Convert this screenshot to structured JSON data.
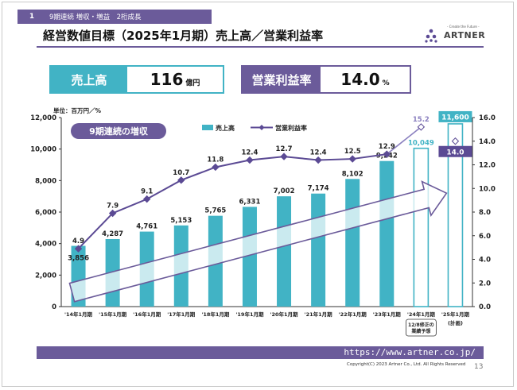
{
  "header": {
    "section_number": "1",
    "section_text": "9期連続 増収・増益　2桁成長",
    "title": "経営数値目標（2025年1月期）売上高／営業利益率",
    "logo_tagline": "- Create the Future -",
    "logo_text": "ARTNER"
  },
  "kpis": {
    "sales_label": "売上高",
    "sales_value": "116",
    "sales_unit": "億円",
    "margin_label": "営業利益率",
    "margin_value": "14.0",
    "margin_unit": "%"
  },
  "chart_data": {
    "type": "bar",
    "unit_label": "単位：百万円／%",
    "badge": "9期連続の増収",
    "categories": [
      "'14年1月期",
      "'15年1月期",
      "'16年1月期",
      "'17年1月期",
      "'18年1月期",
      "'19年1月期",
      "'20年1月期",
      "'21年1月期",
      "'22年1月期",
      "'23年1月期",
      "'24年1月期",
      "'25年1月期"
    ],
    "category_notes": [
      "",
      "",
      "",
      "",
      "",
      "",
      "",
      "",
      "",
      "",
      "12/8修正の業績予想",
      "(計画)"
    ],
    "series": [
      {
        "name": "売上高",
        "type": "bar",
        "axis": "left",
        "values": [
          3856,
          4287,
          4761,
          5153,
          5765,
          6331,
          7002,
          7174,
          8102,
          9242,
          10049,
          11600
        ],
        "labels": [
          "3,856",
          "4,287",
          "4,761",
          "5,153",
          "5,765",
          "6,331",
          "7,002",
          "7,174",
          "8,102",
          "9,242",
          "10,049",
          "11,600"
        ]
      },
      {
        "name": "営業利益率",
        "type": "line",
        "axis": "right",
        "values": [
          4.9,
          7.9,
          9.1,
          10.7,
          11.8,
          12.4,
          12.7,
          12.4,
          12.5,
          12.9,
          15.2,
          14.0
        ],
        "labels": [
          "4.9",
          "7.9",
          "9.1",
          "10.7",
          "11.8",
          "12.4",
          "12.7",
          "12.4",
          "12.5",
          "12.9",
          "15.2",
          "14.0"
        ]
      }
    ],
    "y_left": {
      "min": 0,
      "max": 12000,
      "ticks": [
        "0",
        "2,000",
        "4,000",
        "6,000",
        "8,000",
        "10,000",
        "12,000"
      ]
    },
    "y_right": {
      "min": 0,
      "max": 16,
      "ticks": [
        "0.0",
        "2.0",
        "4.0",
        "6.0",
        "8.0",
        "10.0",
        "12.0",
        "14.0",
        "16.0"
      ]
    },
    "legend_position": "top-center",
    "colors": {
      "bar": "#41b3c5",
      "line": "#5b4a94",
      "forecast_line": "#8a7fbf",
      "accent": "#6b5b9a"
    }
  },
  "footer": {
    "url": "https://www.artner.co.jp/",
    "copyright": "Copyright(C) 2023 Artner Co., Ltd. All Rights Reserved",
    "page": "13"
  }
}
